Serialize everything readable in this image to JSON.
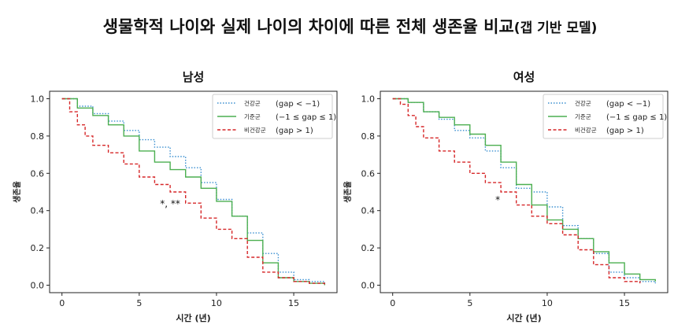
{
  "title": "생물학적 나이와 실제 나이의 차이에 따른 전체 생존율 비교",
  "title_suffix": "(갭 기반 모델)",
  "chart_data": [
    {
      "type": "line",
      "title": "남성",
      "xlabel": "시간 (년)",
      "ylabel": "생존율",
      "xlim": [
        -0.8,
        17.8
      ],
      "ylim": [
        -0.04,
        1.04
      ],
      "xticks": [
        0,
        5,
        10,
        15
      ],
      "yticks": [
        0.0,
        0.2,
        0.4,
        0.6,
        0.8,
        1.0
      ],
      "xtick_labels": [
        "0",
        "5",
        "10",
        "15"
      ],
      "ytick_labels": [
        "0.0",
        "0.2",
        "0.4",
        "0.6",
        "0.8",
        "1.0"
      ],
      "legend_position": "top-right",
      "grid": false,
      "annotation": {
        "text": "*, **",
        "x": 7.0,
        "y": 0.42
      },
      "series": [
        {
          "name": "건강군",
          "name_note": "(gap < −1)",
          "color": "#3a8fd0",
          "dash": "dotted",
          "x": [
            0,
            1,
            2,
            3,
            4,
            5,
            6,
            7,
            8,
            9,
            10,
            11,
            12,
            13,
            14,
            15,
            16,
            17
          ],
          "y": [
            1.0,
            0.96,
            0.92,
            0.88,
            0.83,
            0.78,
            0.74,
            0.69,
            0.63,
            0.55,
            0.46,
            0.37,
            0.28,
            0.17,
            0.07,
            0.03,
            0.02,
            0.01
          ]
        },
        {
          "name": "기준군",
          "name_note": "(−1 ≤ gap ≤ 1)",
          "color": "#4caf50",
          "dash": "solid",
          "x": [
            0,
            1,
            2,
            3,
            4,
            5,
            6,
            7,
            8,
            9,
            10,
            11,
            12,
            13,
            14,
            15,
            16,
            17
          ],
          "y": [
            1.0,
            0.95,
            0.91,
            0.86,
            0.8,
            0.72,
            0.66,
            0.62,
            0.58,
            0.52,
            0.45,
            0.37,
            0.24,
            0.12,
            0.04,
            0.02,
            0.01,
            0.0
          ]
        },
        {
          "name": "비건강군",
          "name_note": "(gap > 1)",
          "color": "#d62728",
          "dash": "dashed",
          "x": [
            0,
            0.5,
            1,
            1.5,
            2,
            3,
            4,
            5,
            6,
            7,
            8,
            9,
            10,
            11,
            12,
            13,
            14,
            15,
            16,
            17
          ],
          "y": [
            1.0,
            0.93,
            0.86,
            0.8,
            0.75,
            0.71,
            0.65,
            0.58,
            0.54,
            0.5,
            0.44,
            0.36,
            0.3,
            0.25,
            0.15,
            0.07,
            0.04,
            0.02,
            0.01,
            0.0
          ]
        }
      ]
    },
    {
      "type": "line",
      "title": "여성",
      "xlabel": "시간 (년)",
      "ylabel": "생존율",
      "xlim": [
        -0.8,
        17.8
      ],
      "ylim": [
        -0.04,
        1.04
      ],
      "xticks": [
        0,
        5,
        10,
        15
      ],
      "yticks": [
        0.0,
        0.2,
        0.4,
        0.6,
        0.8,
        1.0
      ],
      "xtick_labels": [
        "0",
        "5",
        "10",
        "15"
      ],
      "ytick_labels": [
        "0.0",
        "0.2",
        "0.4",
        "0.6",
        "0.8",
        "1.0"
      ],
      "legend_position": "top-right",
      "grid": false,
      "annotation": {
        "text": "*",
        "x": 6.8,
        "y": 0.44
      },
      "series": [
        {
          "name": "건강군",
          "name_note": "(gap < −1)",
          "color": "#3a8fd0",
          "dash": "dotted",
          "x": [
            0,
            1,
            2,
            3,
            4,
            5,
            6,
            7,
            8,
            9,
            10,
            11,
            12,
            13,
            14,
            15,
            16,
            17
          ],
          "y": [
            1.0,
            0.98,
            0.93,
            0.89,
            0.83,
            0.79,
            0.72,
            0.63,
            0.52,
            0.5,
            0.42,
            0.32,
            0.25,
            0.17,
            0.07,
            0.04,
            0.02,
            0.01
          ]
        },
        {
          "name": "기준군",
          "name_note": "(−1 ≤ gap ≤ 1)",
          "color": "#4caf50",
          "dash": "solid",
          "x": [
            0,
            1,
            2,
            3,
            4,
            5,
            6,
            7,
            8,
            9,
            10,
            11,
            12,
            13,
            14,
            15,
            16,
            17
          ],
          "y": [
            1.0,
            0.98,
            0.93,
            0.9,
            0.86,
            0.81,
            0.75,
            0.66,
            0.54,
            0.43,
            0.35,
            0.3,
            0.25,
            0.18,
            0.12,
            0.06,
            0.03,
            0.02
          ]
        },
        {
          "name": "비건강군",
          "name_note": "(gap > 1)",
          "color": "#d62728",
          "dash": "dashed",
          "x": [
            0,
            0.5,
            1,
            1.5,
            2,
            3,
            4,
            5,
            6,
            7,
            8,
            9,
            10,
            11,
            12,
            13,
            14,
            15,
            16
          ],
          "y": [
            1.0,
            0.97,
            0.91,
            0.85,
            0.79,
            0.72,
            0.66,
            0.6,
            0.55,
            0.5,
            0.43,
            0.37,
            0.33,
            0.27,
            0.19,
            0.11,
            0.04,
            0.02,
            0.01
          ]
        }
      ]
    }
  ]
}
